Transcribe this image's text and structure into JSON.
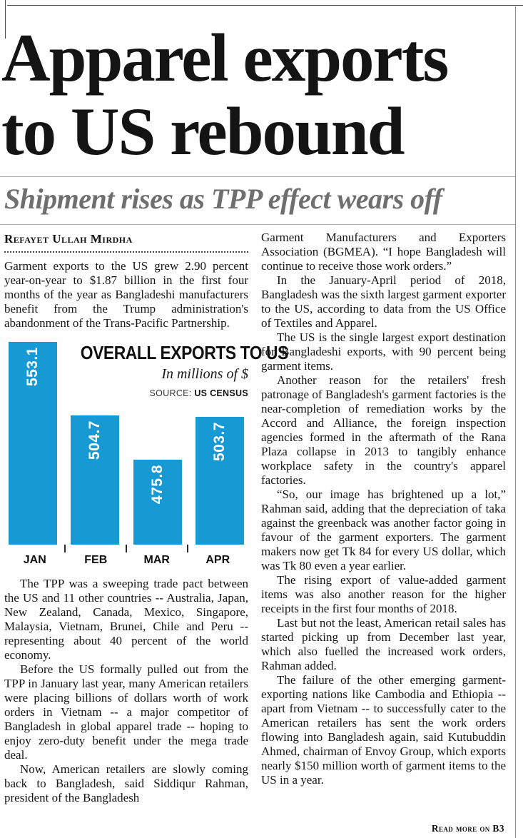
{
  "page": {
    "headline_line1": "Apparel exports",
    "headline_line2": "to US rebound",
    "subtitle": "Shipment rises as TPP effect wears off",
    "byline": "Refayet Ullah Mirdha",
    "read_more": "Read more on B3"
  },
  "article": {
    "lead": "Garment exports to the US grew 2.90 percent year-on-year to $1.87 billion in the first four months of the year as Bangladeshi manufacturers benefit from the Trump administration's abandonment of the Trans-Pacific Partnership.",
    "left_paragraphs": [
      "The TPP was a sweeping trade pact between the US and 11 other countries -- Australia, Japan, New Zealand, Canada, Mexico, Singapore, Malaysia, Vietnam, Brunei, Chile and Peru -- representing about 40 percent of the world economy.",
      "Before the US formally pulled out from the TPP in January last year, many American retailers were placing billions of dollars worth of work orders in Vietnam -- a major competitor of Bangladesh in global apparel trade -- hoping to enjoy zero-duty benefit under the mega trade deal.",
      "Now, American retailers are slowly coming back to Bangladesh, said Siddiqur Rahman, president of the Bangladesh"
    ],
    "right_paragraphs": [
      "Garment Manufacturers and Exporters Association (BGMEA). “I hope Bangladesh will continue to receive those work orders.”",
      "In the January-April period of 2018, Bangladesh was the sixth largest garment exporter to the US, according to data from the US Office of Textiles and Apparel.",
      "The US is the single largest export destination for Bangladeshi exports, with 90 percent being garment items.",
      "Another reason for the retailers' fresh patronage of Bangladesh's garment factories is the near-completion of remediation works by the Accord and Alliance, the foreign inspection agencies formed in the aftermath of the Rana Plaza collapse in 2013 to tangibly enhance workplace safety in the country's apparel factories.",
      "“So, our image has brightened up a lot,” Rahman said, adding that the depreciation of taka against the greenback was another factor going in favour of the garment exporters. The garment makers now get Tk 84 for every US dollar, which was Tk 80 even a year earlier.",
      "The rising export of value-added garment items was also another reason for the higher receipts in the first four months of 2018.",
      "Last but not the least, American retail sales has started picking up from December last year, which also fuelled the increased work orders, Rahman added.",
      "The failure of the other emerging garment-exporting nations like Cambodia and Ethiopia -- apart from Vietnam -- to successfully cater to the American retailers has sent the work orders flowing into Bangladesh again, said Kutubuddin Ahmed, chairman of Envoy Group, which exports nearly $150 million worth of garment items to the US in a year."
    ]
  },
  "chart_data": {
    "type": "bar",
    "title": "OVERALL EXPORTS TO US",
    "subtitle": "In millions of $",
    "source_label": "SOURCE:",
    "source_value": "US CENSUS",
    "categories": [
      "JAN",
      "FEB",
      "MAR",
      "APR"
    ],
    "values": [
      553.1,
      504.7,
      475.8,
      503.7
    ],
    "ylabel": "",
    "xlabel": "",
    "ylim": [
      420,
      560
    ],
    "bar_color": "#1799d4",
    "value_label_color": "#ffffff",
    "legend": "none",
    "grid": "off"
  }
}
